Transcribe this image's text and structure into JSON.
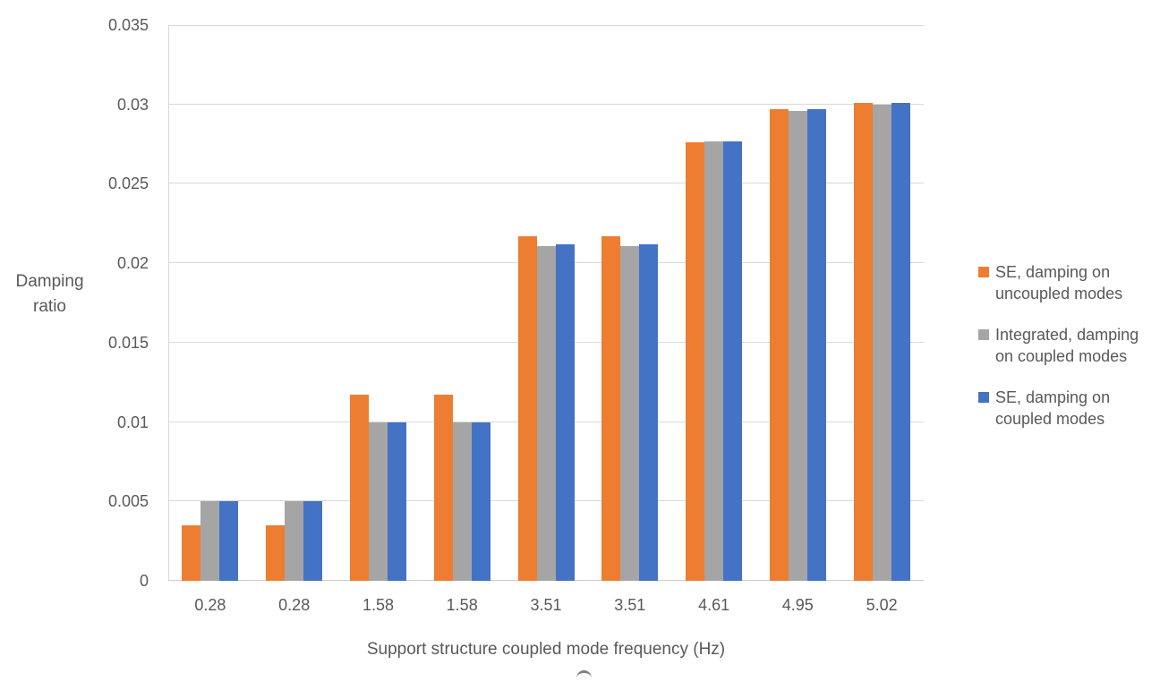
{
  "chart_data": {
    "type": "bar",
    "title": "",
    "xlabel": "Support structure coupled mode frequency (Hz)",
    "ylabel": "Damping ratio",
    "ylabel_lines": [
      "Damping",
      "ratio"
    ],
    "categories": [
      "0.28",
      "0.28",
      "1.58",
      "1.58",
      "3.51",
      "3.51",
      "4.61",
      "4.95",
      "5.02"
    ],
    "series": [
      {
        "name": "SE, damping on uncoupled modes",
        "color": "#ED7D31",
        "values": [
          0.0035,
          0.0035,
          0.0117,
          0.0117,
          0.0217,
          0.0217,
          0.0276,
          0.0297,
          0.0301
        ]
      },
      {
        "name": "Integrated, damping on coupled modes",
        "color": "#A5A5A5",
        "values": [
          0.005,
          0.005,
          0.01,
          0.01,
          0.0211,
          0.0211,
          0.0277,
          0.0296,
          0.03
        ]
      },
      {
        "name": "SE, damping on coupled modes",
        "color": "#4472C4",
        "values": [
          0.005,
          0.005,
          0.01,
          0.01,
          0.0212,
          0.0212,
          0.0277,
          0.0297,
          0.0301
        ]
      }
    ],
    "ylim": [
      0,
      0.035
    ],
    "ytick_step": 0.005,
    "yticks": [
      "0",
      "0.005",
      "0.01",
      "0.015",
      "0.02",
      "0.025",
      "0.03",
      "0.035"
    ],
    "grid": true,
    "legend_position": "right",
    "legend": {
      "entries": [
        {
          "color": "#ED7D31",
          "lines": [
            "SE, damping on",
            "uncoupled modes"
          ]
        },
        {
          "color": "#A5A5A5",
          "lines": [
            "Integrated, damping",
            "on coupled modes"
          ]
        },
        {
          "color": "#4472C4",
          "lines": [
            "SE, damping on",
            "coupled modes"
          ]
        }
      ]
    },
    "colors": {
      "gridline": "#D9D9D9",
      "axis_text": "#595959",
      "background": "#FFFFFF"
    }
  }
}
